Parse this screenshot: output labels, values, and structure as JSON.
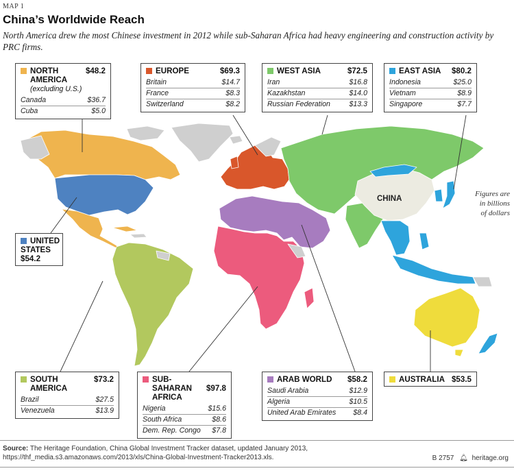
{
  "map_label": "MAP 1",
  "title": "China’s Worldwide Reach",
  "subtitle": "North America drew the most Chinese investment in 2012 while sub-Saharan Africa had heavy engineering and construction activity by PRC firms.",
  "china_label": "CHINA",
  "figures_note": [
    "Figures are",
    "in billions",
    "of dollars"
  ],
  "colors": {
    "north_america": "#efb44e",
    "united_states": "#4e82c1",
    "europe": "#d9572b",
    "west_asia": "#7ec96a",
    "east_asia": "#2ea4dc",
    "south_america": "#b2c85e",
    "sub_saharan_africa": "#ec5b7d",
    "arab_world": "#a77cbf",
    "australia": "#efdc3c",
    "china": "#ecebe1",
    "other": "#cfcfcf"
  },
  "regions": {
    "north_america": {
      "name": "NORTH AMERICA",
      "note": "(excluding U.S.)",
      "total": "$48.2",
      "rows": [
        {
          "country": "Canada",
          "value": "$36.7"
        },
        {
          "country": "Cuba",
          "value": "$5.0"
        }
      ]
    },
    "europe": {
      "name": "EUROPE",
      "total": "$69.3",
      "rows": [
        {
          "country": "Britain",
          "value": "$14.7"
        },
        {
          "country": "France",
          "value": "$8.3"
        },
        {
          "country": "Switzerland",
          "value": "$8.2"
        }
      ]
    },
    "west_asia": {
      "name": "WEST ASIA",
      "total": "$72.5",
      "rows": [
        {
          "country": "Iran",
          "value": "$16.8"
        },
        {
          "country": "Kazakhstan",
          "value": "$14.0"
        },
        {
          "country": "Russian Federation",
          "value": "$13.3"
        }
      ]
    },
    "east_asia": {
      "name": "EAST ASIA",
      "total": "$80.2",
      "rows": [
        {
          "country": "Indonesia",
          "value": "$25.0"
        },
        {
          "country": "Vietnam",
          "value": "$8.9"
        },
        {
          "country": "Singapore",
          "value": "$7.7"
        }
      ]
    },
    "united_states": {
      "name_line1": "UNITED",
      "name_line2": "STATES",
      "total": "$54.2"
    },
    "south_america": {
      "name": "SOUTH AMERICA",
      "total": "$73.2",
      "rows": [
        {
          "country": "Brazil",
          "value": "$27.5"
        },
        {
          "country": "Venezuela",
          "value": "$13.9"
        }
      ]
    },
    "sub_saharan_africa": {
      "name_line1": "SUB-SAHARAN",
      "name_line2": "AFRICA",
      "total": "$97.8",
      "rows": [
        {
          "country": "Nigeria",
          "value": "$15.6"
        },
        {
          "country": "South Africa",
          "value": "$8.6"
        },
        {
          "country": "Dem. Rep. Congo",
          "value": "$7.8"
        }
      ]
    },
    "arab_world": {
      "name": "ARAB WORLD",
      "total": "$58.2",
      "rows": [
        {
          "country": "Saudi Arabia",
          "value": "$12.9"
        },
        {
          "country": "Algeria",
          "value": "$10.5"
        },
        {
          "country": "United Arab Emirates",
          "value": "$8.4"
        }
      ]
    },
    "australia": {
      "name": "AUSTRALIA",
      "total": "$53.5"
    }
  },
  "source_label": "Source:",
  "source_text": " The Heritage Foundation, China Global Investment Tracker dataset, updated January 2013, https://thf_media.s3.amazonaws.com/2013/xls/China-Global-Investment-Tracker2013.xls.",
  "report_id": "B 2757",
  "site": "heritage.org"
}
